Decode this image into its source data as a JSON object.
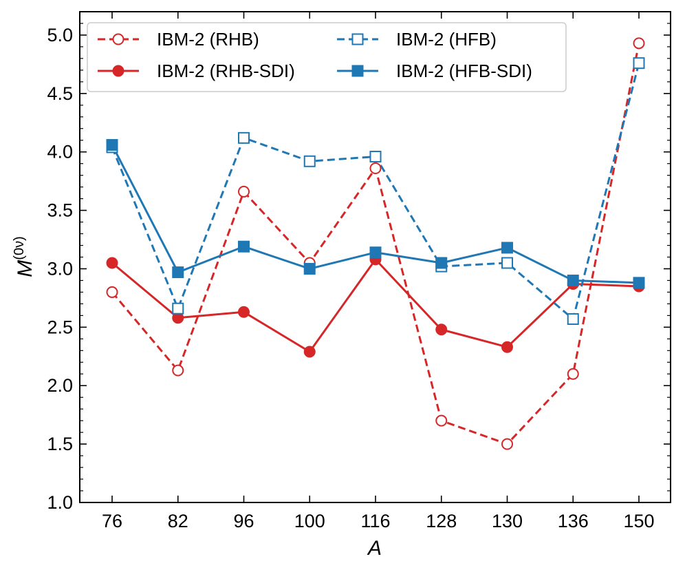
{
  "chart_data": {
    "type": "line",
    "title": "",
    "xlabel": "A",
    "ylabel_base": "M",
    "ylabel_sup": "(0ν)",
    "categories": [
      "76",
      "82",
      "96",
      "100",
      "116",
      "128",
      "130",
      "136",
      "150"
    ],
    "ylim": [
      1.0,
      5.2
    ],
    "yticks": [
      1.0,
      1.5,
      2.0,
      2.5,
      3.0,
      3.5,
      4.0,
      4.5,
      5.0
    ],
    "ytick_labels": [
      "1.0",
      "1.5",
      "2.0",
      "2.5",
      "3.0",
      "3.5",
      "4.0",
      "4.5",
      "5.0"
    ],
    "grid": false,
    "legend_position": "top-left",
    "series": [
      {
        "name": "IBM-2 (RHB)",
        "color": "#d62728",
        "dashed": true,
        "marker": "circle",
        "filled": false,
        "values": [
          2.8,
          2.13,
          3.66,
          3.05,
          3.86,
          1.7,
          1.5,
          2.1,
          4.93
        ]
      },
      {
        "name": "IBM-2 (RHB-SDI)",
        "color": "#d62728",
        "dashed": false,
        "marker": "circle",
        "filled": true,
        "values": [
          3.05,
          2.58,
          2.63,
          2.29,
          3.08,
          2.48,
          2.33,
          2.87,
          2.85
        ]
      },
      {
        "name": "IBM-2 (HFB)",
        "color": "#1f77b4",
        "dashed": true,
        "marker": "square",
        "filled": false,
        "values": [
          4.04,
          2.66,
          4.12,
          3.92,
          3.96,
          3.02,
          3.05,
          2.57,
          4.76
        ]
      },
      {
        "name": "IBM-2 (HFB-SDI)",
        "color": "#1f77b4",
        "dashed": false,
        "marker": "square",
        "filled": true,
        "values": [
          4.06,
          2.97,
          3.19,
          3.0,
          3.14,
          3.05,
          3.18,
          2.9,
          2.88
        ]
      }
    ]
  }
}
